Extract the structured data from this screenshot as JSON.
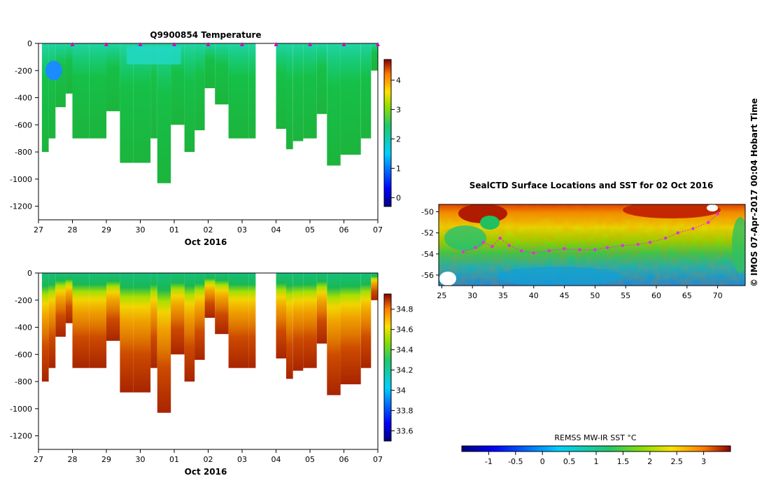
{
  "credit": "© IMOS 07-Apr-2017 00:04 Hobart Time",
  "chart_data": [
    {
      "type": "heatmap",
      "title": "Q9900854  Temperature",
      "xlabel": "Oct 2016",
      "ylabel": "",
      "x_ticks": [
        "27",
        "28",
        "29",
        "30",
        "01",
        "02",
        "03",
        "04",
        "05",
        "06",
        "07"
      ],
      "ylim": [
        -1300,
        0
      ],
      "y_ticks": [
        0,
        -200,
        -400,
        -600,
        -800,
        -1000,
        -1200
      ],
      "colorbar": {
        "range": [
          -0.3,
          4.7
        ],
        "ticks": [
          0,
          1,
          2,
          3,
          4
        ]
      },
      "profile_x": [
        27.1,
        27.3,
        27.5,
        27.8,
        28.0,
        28.5,
        29.0,
        29.4,
        29.8,
        30.3,
        30.5,
        30.9,
        31.3,
        31.6,
        31.9,
        32.2,
        32.6,
        33.2,
        34.0,
        34.3,
        34.5,
        34.8,
        35.2,
        35.5,
        35.9,
        36.5,
        36.8
      ],
      "profile_depth": [
        800,
        700,
        470,
        370,
        700,
        700,
        500,
        880,
        880,
        700,
        1030,
        600,
        800,
        640,
        330,
        450,
        700,
        700,
        630,
        780,
        720,
        700,
        520,
        900,
        820,
        700,
        200
      ],
      "surface_markers_x": [
        28,
        29,
        30,
        31,
        32,
        33,
        34,
        35,
        36,
        37
      ]
    },
    {
      "type": "heatmap",
      "title": "",
      "xlabel": "Oct 2016",
      "ylabel": "",
      "x_ticks": [
        "27",
        "28",
        "29",
        "30",
        "01",
        "02",
        "03",
        "04",
        "05",
        "06",
        "07"
      ],
      "ylim": [
        -1300,
        0
      ],
      "y_ticks": [
        0,
        -200,
        -400,
        -600,
        -800,
        -1000,
        -1200
      ],
      "colorbar": {
        "range": [
          33.5,
          34.95
        ],
        "ticks": [
          33.6,
          33.8,
          34,
          34.2,
          34.4,
          34.6,
          34.8
        ]
      }
    },
    {
      "type": "heatmap",
      "title": "SealCTD Surface Locations and SST for 02 Oct 2016",
      "xlabel": "",
      "ylabel": "",
      "x_ticks": [
        25,
        30,
        35,
        40,
        45,
        50,
        55,
        60,
        65,
        70
      ],
      "y_ticks": [
        -50,
        -52,
        -54,
        -56
      ],
      "xlim": [
        24.5,
        74.5
      ],
      "ylim": [
        -57,
        -49.3
      ],
      "track_lon": [
        28.5,
        30.5,
        31.8,
        33.2,
        34.5,
        36.0,
        38.0,
        40.0,
        42.5,
        45.0,
        47.5,
        50.0,
        52.0,
        54.5,
        57.0,
        59.0,
        61.5,
        63.5,
        66.0,
        68.5,
        70.0
      ],
      "track_lat": [
        -53.8,
        -53.4,
        -52.9,
        -53.3,
        -52.5,
        -53.2,
        -53.7,
        -53.9,
        -53.7,
        -53.5,
        -53.6,
        -53.6,
        -53.4,
        -53.2,
        -53.1,
        -52.9,
        -52.5,
        -52.0,
        -51.6,
        -51.0,
        -50.2
      ],
      "colorbar": {
        "label": "REMSS MW-IR SST °C",
        "range": [
          -1.5,
          3.5
        ],
        "ticks": [
          -1,
          -0.5,
          0,
          0.5,
          1,
          1.5,
          2,
          2.5,
          3
        ]
      }
    }
  ]
}
